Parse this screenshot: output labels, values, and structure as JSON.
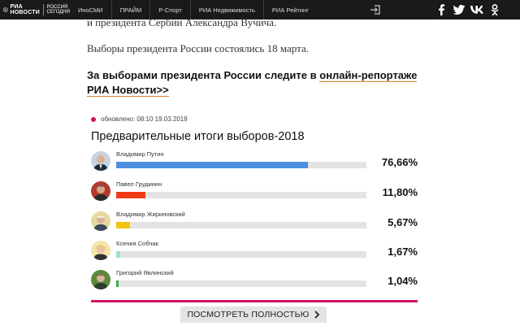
{
  "header": {
    "logo_ria": "РИА",
    "logo_novosti": "НОВОСТИ",
    "logo_rs_1": "РОССИЯ",
    "logo_rs_2": "СЕГОДНЯ",
    "nav": [
      "ИноСМИ",
      "ПРАЙМ",
      "Р-Спорт",
      "РИА Недвижимость",
      "РИА Рейтинг"
    ]
  },
  "article": {
    "line1": "и президента Сербии Александра Вучича.",
    "line2": "Выборы президента России состоялись 18 марта.",
    "line3_text": "За выборами президента России следите в ",
    "line3_link": "онлайн-репортаже РИА Новости>>"
  },
  "widget": {
    "updated": "обновлено: 08:10 19.03.2018",
    "title": "Предварительные итоги выборов-2018",
    "more_button": "ПОСМОТРЕТЬ ПОЛНОСТЬЮ",
    "candidates": [
      {
        "name": "Владимир Путин",
        "percent": "76,66%",
        "share": 76.66,
        "color": "#4a8fe0"
      },
      {
        "name": "Павел Грудинин",
        "percent": "11,80%",
        "share": 11.8,
        "color": "#ee3a16"
      },
      {
        "name": "Владимир Жириновский",
        "percent": "5,67%",
        "share": 5.67,
        "color": "#f2c410"
      },
      {
        "name": "Ксения Собчак",
        "percent": "1,67%",
        "share": 1.67,
        "color": "#9ee3d0"
      },
      {
        "name": "Григорий Явлинский",
        "percent": "1,04%",
        "share": 1.04,
        "color": "#2fb24e"
      }
    ]
  }
}
